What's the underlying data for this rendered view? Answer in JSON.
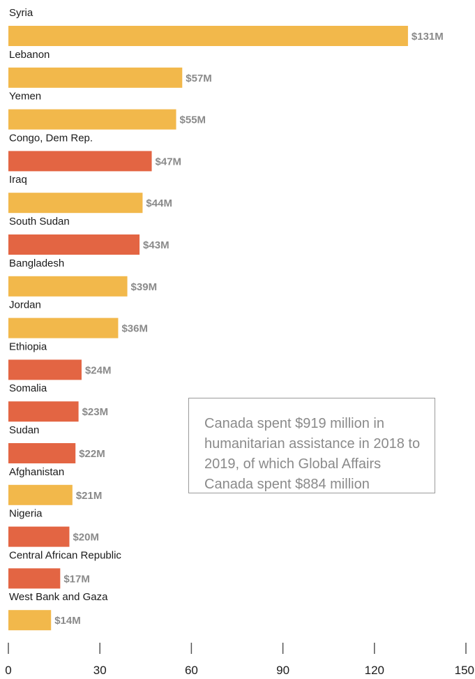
{
  "chart_data": {
    "type": "bar",
    "orientation": "horizontal",
    "categories": [
      "Syria",
      "Lebanon",
      "Yemen",
      "Congo, Dem Rep.",
      "Iraq",
      "South Sudan",
      "Bangladesh",
      "Jordan",
      "Ethiopia",
      "Somalia",
      "Sudan",
      "Afghanistan",
      "Nigeria",
      "Central African Republic",
      "West Bank and Gaza"
    ],
    "values": [
      131,
      57,
      55,
      47,
      44,
      43,
      39,
      36,
      24,
      23,
      22,
      21,
      20,
      17,
      14
    ],
    "value_labels": [
      "$131M",
      "$57M",
      "$55M",
      "$47M",
      "$44M",
      "$43M",
      "$39M",
      "$36M",
      "$24M",
      "$23M",
      "$22M",
      "$21M",
      "$20M",
      "$17M",
      "$14M"
    ],
    "bar_color_groups": [
      "yellow",
      "yellow",
      "yellow",
      "orange",
      "yellow",
      "orange",
      "yellow",
      "yellow",
      "orange",
      "orange",
      "orange",
      "yellow",
      "orange",
      "orange",
      "yellow"
    ],
    "colors": {
      "yellow": "#F2B84B",
      "orange": "#E36543"
    },
    "x_ticks": [
      "0",
      "30",
      "60",
      "90",
      "120",
      "150"
    ],
    "xlim": [
      0,
      150
    ],
    "grid": false,
    "title": "",
    "xlabel": "",
    "ylabel": ""
  },
  "note": {
    "text": "Canada spent $919 million in humanitarian assistance in 2018 to 2019, of which Global Affairs Canada spent $884 million"
  }
}
